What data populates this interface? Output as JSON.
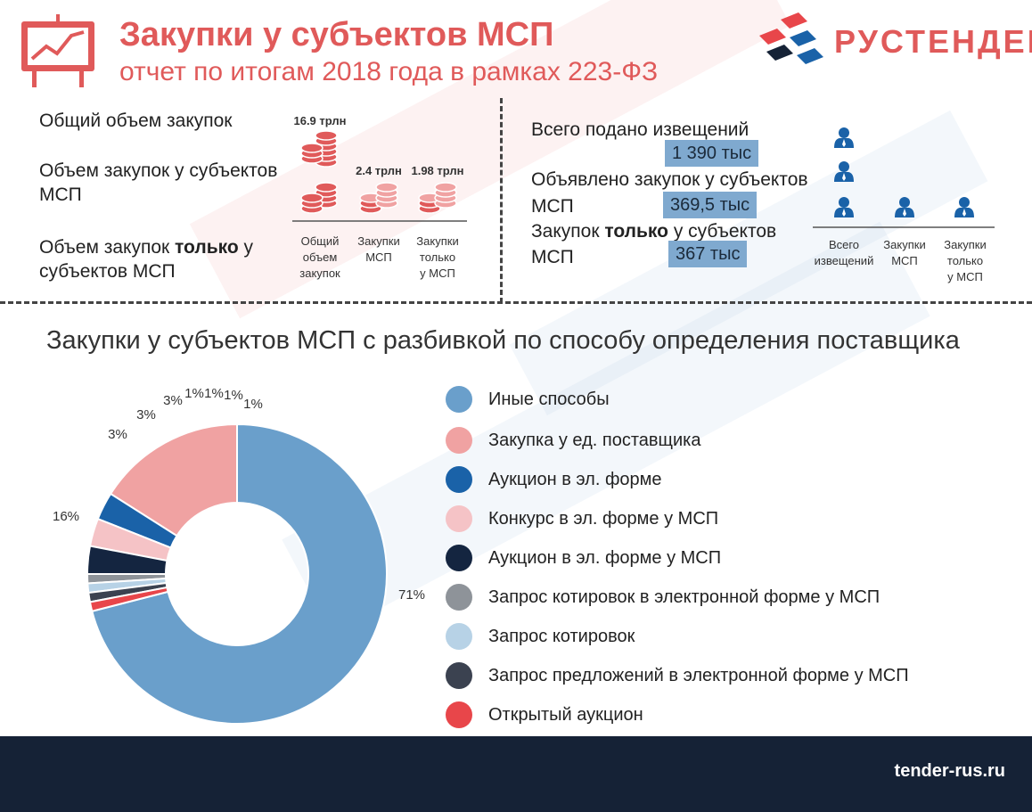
{
  "header": {
    "title": "Закупки у субъектов МСП",
    "subtitle": "отчет по итогам 2018 года в рамках 223-ФЗ",
    "brand": "РУСТЕНДЕР"
  },
  "volumes": {
    "labels": [
      "Общий объем закупок",
      "Объем закупок у субъектов",
      "МСП",
      "Объем закупок ",
      "только",
      " у",
      "субъектов МСП"
    ],
    "values": [
      "16.9 трлн",
      "2.4 трлн",
      "1.98 трлн"
    ],
    "axis": [
      "Общий",
      "объем",
      "закупок",
      "Закупки",
      "МСП",
      "Закупки",
      "только",
      "у МСП"
    ]
  },
  "notices": {
    "lines": [
      "Всего подано извещений",
      "Объявлено закупок у субъектов",
      "МСП",
      "Закупок ",
      "только",
      " у субъектов",
      "МСП"
    ],
    "values": [
      "1 390 тыс",
      "369,5 тыс",
      "367 тыс"
    ],
    "axis": [
      "Всего",
      "извещений",
      "Закупки",
      "МСП",
      "Закупки",
      "только",
      "у МСП"
    ]
  },
  "section_title": "Закупки у субъектов МСП с разбивкой по способу определения поставщика",
  "chart_data": {
    "type": "pie",
    "title": "Закупки у субъектов МСП с разбивкой по способу определения поставщика",
    "categories": [
      "Иные способы",
      "Закупка у ед. поставщика",
      "Аукцион в эл. форме",
      "Конкурс в эл. форме у МСП",
      "Аукцион в эл. форме у МСП",
      "Запрос котировок в электронной форме у МСП",
      "Запрос котировок",
      "Запрос предложений в электронной форме у МСП",
      "Открытый аукцион"
    ],
    "values": [
      71,
      16,
      3,
      3,
      3,
      1,
      1,
      1,
      1
    ],
    "labels": [
      "71%",
      "16%",
      "3%",
      "3%",
      "3%",
      "1%",
      "1%",
      "1%",
      "1%"
    ],
    "colors": [
      "#6a9fcb",
      "#f0a2a2",
      "#1a62a8",
      "#f5c3c6",
      "#142540",
      "#8e9399",
      "#b7d2e6",
      "#3b4250",
      "#e8464a"
    ],
    "legend": "right"
  },
  "footer": {
    "link": "tender-rus.ru"
  }
}
